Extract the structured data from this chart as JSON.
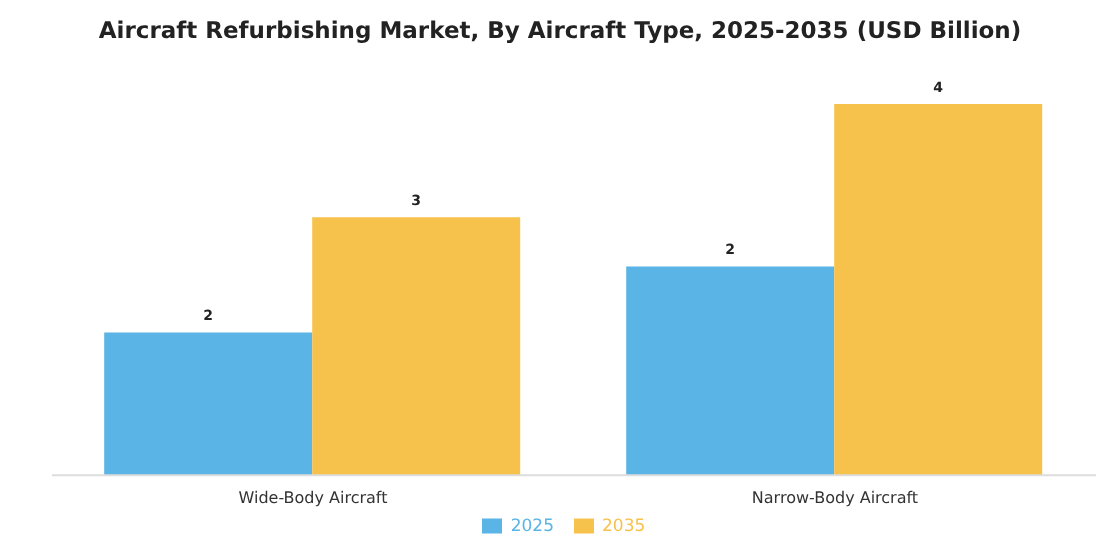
{
  "chart_data": {
    "type": "bar",
    "title": "Aircraft Refurbishing Market, By Aircraft Type, 2025-2035 (USD Billion)",
    "categories": [
      "Wide-Body Aircraft",
      "Narrow-Body Aircraft"
    ],
    "series": [
      {
        "name": "2025",
        "color": "#5ab4e5",
        "values": [
          1.54,
          2.25
        ],
        "value_labels": [
          "2",
          "2"
        ]
      },
      {
        "name": "2035",
        "color": "#f7c24b",
        "values": [
          2.78,
          4.0
        ],
        "value_labels": [
          "3",
          "4"
        ]
      }
    ],
    "legend": "bottom",
    "grid": false
  }
}
